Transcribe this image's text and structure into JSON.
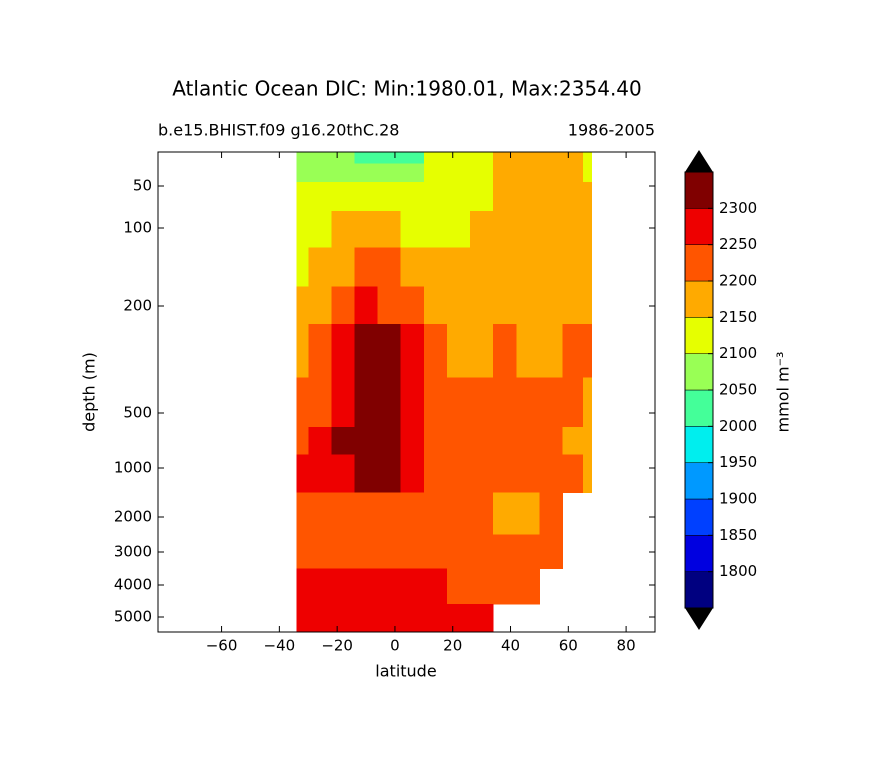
{
  "chart_data": {
    "type": "filled-contour",
    "title": "Atlantic Ocean DIC: Min:1980.01, Max:2354.40",
    "subtitle_left": "b.e15.BHIST.f09 g16.20thC.28",
    "subtitle_right": "1986-2005",
    "xlabel": "latitude",
    "ylabel": "depth (m)",
    "xlim": [
      -82,
      90
    ],
    "xticks": [
      -60,
      -40,
      -20,
      0,
      20,
      40,
      60,
      80
    ],
    "xtick_labels": [
      "−60",
      "−40",
      "−20",
      "0",
      "20",
      "40",
      "60",
      "80"
    ],
    "ylim": [
      5,
      5500
    ],
    "y_inverted": true,
    "yticks": [
      50,
      100,
      200,
      500,
      1000,
      2000,
      3000,
      4000,
      5000
    ],
    "x": [
      -34,
      -26,
      -18,
      -10,
      -2,
      6,
      14,
      22,
      30,
      38,
      46,
      54,
      62,
      68
    ],
    "y": [
      10,
      30,
      60,
      100,
      150,
      200,
      300,
      500,
      750,
      1000,
      2000,
      3000,
      4000,
      5200
    ],
    "z": [
      [
        2090,
        2090,
        2060,
        2030,
        2010,
        2040,
        2100,
        2110,
        2130,
        2150,
        2170,
        2180,
        2170,
        2120
      ],
      [
        2090,
        2090,
        2070,
        2060,
        2050,
        2070,
        2110,
        2120,
        2140,
        2160,
        2180,
        2190,
        2180,
        2130
      ],
      [
        2100,
        2110,
        2120,
        2110,
        2100,
        2110,
        2120,
        2130,
        2140,
        2160,
        2180,
        2190,
        2190,
        2170
      ],
      [
        2130,
        2140,
        2150,
        2160,
        2150,
        2140,
        2140,
        2140,
        2150,
        2160,
        2180,
        2190,
        2190,
        2180
      ],
      [
        2140,
        2160,
        2190,
        2210,
        2220,
        2190,
        2160,
        2150,
        2160,
        2170,
        2180,
        2190,
        2190,
        2180
      ],
      [
        2150,
        2180,
        2220,
        2260,
        2240,
        2230,
        2190,
        2170,
        2170,
        2175,
        2190,
        2190,
        2195,
        2185
      ],
      [
        2170,
        2200,
        2260,
        2310,
        2310,
        2250,
        2210,
        2190,
        2195,
        2210,
        2190,
        2190,
        2200,
        2200
      ],
      [
        2200,
        2240,
        2290,
        2320,
        2330,
        2260,
        2220,
        2210,
        2210,
        2210,
        2200,
        2200,
        2200,
        2190
      ],
      [
        2230,
        2260,
        2310,
        2330,
        2340,
        2280,
        2230,
        2220,
        2210,
        2210,
        2210,
        2200,
        2190,
        2180
      ],
      [
        2250,
        2270,
        2290,
        2310,
        2300,
        2260,
        2230,
        2210,
        2210,
        2210,
        2210,
        2200,
        2200,
        2190
      ],
      [
        2240,
        2240,
        2240,
        2230,
        2230,
        2220,
        2220,
        2210,
        2200,
        2190,
        2190,
        2200,
        null,
        null
      ],
      [
        2240,
        2240,
        2240,
        2240,
        2230,
        2230,
        2230,
        2220,
        2210,
        2210,
        2210,
        2210,
        null,
        null
      ],
      [
        2260,
        2260,
        2260,
        2250,
        2250,
        2250,
        2250,
        2240,
        2230,
        2230,
        2220,
        null,
        null,
        null
      ],
      [
        2290,
        2270,
        2260,
        2260,
        2260,
        2260,
        2250,
        2250,
        2250,
        null,
        null,
        null,
        null,
        null
      ]
    ],
    "levels": [
      1750,
      1800,
      1850,
      1900,
      1950,
      2000,
      2050,
      2100,
      2150,
      2200,
      2250,
      2300,
      2350
    ],
    "level_colors": [
      "#000080",
      "#0000e0",
      "#0040ff",
      "#0099ff",
      "#00eeee",
      "#44ff99",
      "#99ff55",
      "#e6ff00",
      "#ffaa00",
      "#ff5500",
      "#ee0000",
      "#800000"
    ],
    "colorbar_ticks": [
      1800,
      1850,
      1900,
      1950,
      2000,
      2050,
      2100,
      2150,
      2200,
      2250,
      2300
    ],
    "colorbar_label": "mmol m⁻³"
  }
}
